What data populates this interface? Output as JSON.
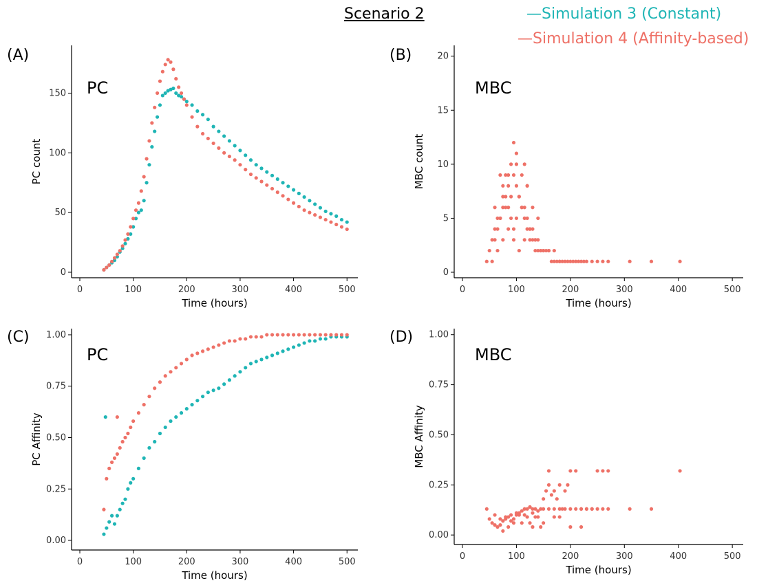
{
  "figure": {
    "title": "Scenario 2",
    "legend": [
      {
        "label": "—Simulation 3 (Constant)",
        "color": "#1fb5b5"
      },
      {
        "label": "—Simulation 4 (Affinity-based)",
        "color": "#ee7167"
      }
    ]
  },
  "colors": {
    "sim3": "#1fb5b5",
    "sim4": "#ee7167",
    "axis": "#000000"
  },
  "chart_data": [
    {
      "type": "scatter",
      "panel": "(A)",
      "panel_label": "PC",
      "xlabel": "Time (hours)",
      "ylabel": "PC count",
      "xlim": [
        0,
        510
      ],
      "ylim": [
        0,
        190
      ],
      "xticks": [
        0,
        100,
        200,
        300,
        400,
        500
      ],
      "yticks": [
        0,
        50,
        100,
        150
      ],
      "xtick_labels": [
        "0",
        "100",
        "200",
        "300",
        "400",
        "500"
      ],
      "ytick_labels": [
        "0",
        "50",
        "100",
        "150"
      ],
      "series": [
        {
          "name": "Simulation 3 (Constant)",
          "color": "#1fb5b5",
          "x": [
            45,
            50,
            55,
            60,
            65,
            70,
            75,
            80,
            85,
            90,
            95,
            100,
            105,
            110,
            115,
            120,
            125,
            130,
            135,
            140,
            145,
            150,
            155,
            160,
            165,
            170,
            175,
            180,
            185,
            190,
            195,
            200,
            210,
            220,
            230,
            240,
            250,
            260,
            270,
            280,
            290,
            300,
            310,
            320,
            330,
            340,
            350,
            360,
            370,
            380,
            390,
            400,
            410,
            420,
            430,
            440,
            450,
            460,
            470,
            480,
            490,
            500
          ],
          "y": [
            2,
            4,
            6,
            8,
            10,
            13,
            17,
            20,
            24,
            28,
            32,
            38,
            45,
            50,
            52,
            60,
            75,
            90,
            105,
            118,
            130,
            140,
            148,
            150,
            152,
            153,
            154,
            150,
            148,
            147,
            145,
            143,
            140,
            135,
            132,
            128,
            122,
            118,
            114,
            110,
            106,
            102,
            98,
            94,
            90,
            87,
            84,
            81,
            78,
            75,
            72,
            69,
            66,
            63,
            60,
            57,
            54,
            51,
            49,
            47,
            44,
            42
          ]
        },
        {
          "name": "Simulation 4 (Affinity-based)",
          "color": "#ee7167",
          "x": [
            45,
            50,
            55,
            60,
            65,
            70,
            75,
            80,
            85,
            90,
            95,
            100,
            105,
            110,
            115,
            120,
            125,
            130,
            135,
            140,
            145,
            150,
            155,
            160,
            165,
            170,
            175,
            180,
            185,
            190,
            195,
            200,
            210,
            220,
            230,
            240,
            250,
            260,
            270,
            280,
            290,
            300,
            310,
            320,
            330,
            340,
            350,
            360,
            370,
            380,
            390,
            400,
            410,
            420,
            430,
            440,
            450,
            460,
            470,
            480,
            490,
            500
          ],
          "y": [
            2,
            4,
            6,
            9,
            12,
            15,
            18,
            22,
            27,
            32,
            38,
            45,
            52,
            58,
            68,
            80,
            95,
            110,
            125,
            138,
            150,
            160,
            168,
            174,
            178,
            176,
            170,
            162,
            155,
            150,
            145,
            140,
            130,
            122,
            116,
            112,
            108,
            104,
            100,
            97,
            94,
            90,
            86,
            82,
            79,
            76,
            73,
            70,
            67,
            64,
            61,
            58,
            55,
            52,
            50,
            48,
            46,
            44,
            42,
            40,
            38,
            36
          ]
        }
      ]
    },
    {
      "type": "scatter",
      "panel": "(B)",
      "panel_label": "MBC",
      "xlabel": "Time (hours)",
      "ylabel": "MBC count",
      "xlim": [
        0,
        510
      ],
      "ylim": [
        0,
        21
      ],
      "xticks": [
        0,
        100,
        200,
        300,
        400,
        500
      ],
      "yticks": [
        0,
        5,
        10,
        15,
        20
      ],
      "xtick_labels": [
        "0",
        "100",
        "200",
        "300",
        "400",
        "500"
      ],
      "ytick_labels": [
        "0",
        "5",
        "10",
        "15",
        "20"
      ],
      "series": [
        {
          "name": "Simulation 4 (Affinity-based)",
          "color": "#ee7167",
          "x": [
            45,
            50,
            55,
            60,
            65,
            70,
            75,
            80,
            85,
            90,
            95,
            100,
            105,
            110,
            115,
            120,
            125,
            130,
            135,
            140,
            145,
            150,
            155,
            160,
            165,
            170,
            175,
            180,
            185,
            190,
            195,
            200,
            205,
            210,
            215,
            220,
            225,
            230,
            240,
            250,
            260,
            270,
            310,
            350,
            403,
            55,
            65,
            75,
            85,
            95,
            105,
            115,
            125,
            135,
            145,
            60,
            70,
            80,
            90,
            100,
            110,
            120,
            130,
            140,
            150,
            160,
            170,
            180,
            65,
            75,
            85,
            95,
            105,
            115,
            125,
            135,
            60,
            80,
            100,
            120,
            140,
            70,
            90,
            110,
            130,
            75,
            95,
            115,
            85,
            100,
            120
          ],
          "y": [
            1,
            2,
            3,
            4,
            4,
            5,
            6,
            7,
            6,
            5,
            4,
            5,
            7,
            6,
            5,
            4,
            3,
            3,
            2,
            2,
            2,
            2,
            2,
            2,
            1,
            1,
            1,
            1,
            1,
            1,
            1,
            1,
            1,
            1,
            1,
            1,
            1,
            1,
            1,
            1,
            1,
            1,
            1,
            1,
            1,
            1,
            2,
            3,
            4,
            3,
            2,
            3,
            4,
            3,
            2,
            3,
            5,
            6,
            7,
            8,
            6,
            5,
            4,
            3,
            2,
            2,
            2,
            1,
            5,
            7,
            8,
            9,
            7,
            6,
            4,
            3,
            6,
            9,
            10,
            8,
            5,
            9,
            10,
            9,
            6,
            8,
            12,
            10,
            9,
            11,
            8
          ]
        }
      ]
    },
    {
      "type": "scatter",
      "panel": "(C)",
      "panel_label": "PC",
      "xlabel": "Time (hours)",
      "ylabel": "PC Affinity",
      "xlim": [
        0,
        510
      ],
      "ylim": [
        -0.02,
        1.03
      ],
      "xticks": [
        0,
        100,
        200,
        300,
        400,
        500
      ],
      "yticks": [
        0,
        0.25,
        0.5,
        0.75,
        1.0
      ],
      "xtick_labels": [
        "0",
        "100",
        "200",
        "300",
        "400",
        "500"
      ],
      "ytick_labels": [
        "0.00",
        "0.25",
        "0.50",
        "0.75",
        "1.00"
      ],
      "series": [
        {
          "name": "Simulation 3 (Constant)",
          "color": "#1fb5b5",
          "x": [
            45,
            50,
            55,
            60,
            65,
            70,
            75,
            80,
            85,
            90,
            95,
            100,
            110,
            120,
            130,
            140,
            150,
            160,
            170,
            180,
            190,
            200,
            210,
            220,
            230,
            240,
            250,
            260,
            270,
            280,
            290,
            300,
            310,
            320,
            330,
            340,
            350,
            360,
            370,
            380,
            390,
            400,
            410,
            420,
            430,
            440,
            450,
            460,
            470,
            480,
            490,
            500,
            48
          ],
          "y": [
            0.03,
            0.06,
            0.09,
            0.12,
            0.08,
            0.12,
            0.15,
            0.18,
            0.2,
            0.25,
            0.28,
            0.3,
            0.35,
            0.4,
            0.45,
            0.48,
            0.52,
            0.55,
            0.58,
            0.6,
            0.62,
            0.64,
            0.66,
            0.68,
            0.7,
            0.72,
            0.73,
            0.74,
            0.76,
            0.78,
            0.8,
            0.82,
            0.84,
            0.86,
            0.87,
            0.88,
            0.89,
            0.9,
            0.91,
            0.92,
            0.93,
            0.94,
            0.95,
            0.96,
            0.97,
            0.97,
            0.98,
            0.98,
            0.99,
            0.99,
            0.99,
            0.99,
            0.6
          ]
        },
        {
          "name": "Simulation 4 (Affinity-based)",
          "color": "#ee7167",
          "x": [
            45,
            50,
            55,
            60,
            65,
            70,
            75,
            80,
            85,
            90,
            95,
            100,
            110,
            120,
            130,
            140,
            150,
            160,
            170,
            180,
            190,
            200,
            210,
            220,
            230,
            240,
            250,
            260,
            270,
            280,
            290,
            300,
            310,
            320,
            330,
            340,
            350,
            360,
            370,
            380,
            390,
            400,
            410,
            420,
            430,
            440,
            450,
            460,
            470,
            480,
            490,
            500,
            70
          ],
          "y": [
            0.15,
            0.3,
            0.35,
            0.38,
            0.4,
            0.42,
            0.45,
            0.48,
            0.5,
            0.52,
            0.55,
            0.58,
            0.62,
            0.66,
            0.7,
            0.74,
            0.77,
            0.8,
            0.82,
            0.84,
            0.86,
            0.88,
            0.9,
            0.91,
            0.92,
            0.93,
            0.94,
            0.95,
            0.96,
            0.97,
            0.97,
            0.98,
            0.98,
            0.99,
            0.99,
            0.99,
            1.0,
            1.0,
            1.0,
            1.0,
            1.0,
            1.0,
            1.0,
            1.0,
            1.0,
            1.0,
            1.0,
            1.0,
            1.0,
            1.0,
            1.0,
            1.0,
            0.6
          ]
        }
      ]
    },
    {
      "type": "scatter",
      "panel": "(D)",
      "panel_label": "MBC",
      "xlabel": "Time (hours)",
      "ylabel": "MBC Affinity",
      "xlim": [
        0,
        510
      ],
      "ylim": [
        -0.02,
        1.03
      ],
      "xticks": [
        0,
        100,
        200,
        300,
        400,
        500
      ],
      "yticks": [
        0,
        0.25,
        0.5,
        0.75,
        1.0
      ],
      "xtick_labels": [
        "0",
        "100",
        "200",
        "300",
        "400",
        "500"
      ],
      "ytick_labels": [
        "0.00",
        "0.25",
        "0.50",
        "0.75",
        "1.00"
      ],
      "series": [
        {
          "name": "Simulation 4 (Affinity-based)",
          "color": "#ee7167",
          "x": [
            45,
            50,
            55,
            60,
            65,
            70,
            75,
            80,
            85,
            90,
            95,
            100,
            105,
            110,
            115,
            120,
            125,
            130,
            135,
            140,
            145,
            150,
            155,
            160,
            165,
            170,
            175,
            180,
            185,
            190,
            195,
            200,
            210,
            220,
            230,
            240,
            250,
            260,
            270,
            310,
            350,
            403,
            60,
            70,
            80,
            90,
            100,
            110,
            120,
            130,
            140,
            150,
            160,
            170,
            180,
            190,
            200,
            210,
            220,
            230,
            240,
            250,
            260,
            270,
            75,
            85,
            95,
            105,
            115,
            125,
            135,
            145,
            160,
            180,
            200,
            220,
            130,
            150,
            170
          ],
          "y": [
            0.13,
            0.08,
            0.06,
            0.05,
            0.04,
            0.05,
            0.07,
            0.08,
            0.09,
            0.1,
            0.08,
            0.1,
            0.11,
            0.12,
            0.1,
            0.13,
            0.14,
            0.11,
            0.13,
            0.12,
            0.13,
            0.18,
            0.22,
            0.25,
            0.2,
            0.22,
            0.18,
            0.13,
            0.13,
            0.22,
            0.25,
            0.32,
            0.32,
            0.13,
            0.13,
            0.13,
            0.32,
            0.32,
            0.32,
            0.13,
            0.13,
            0.32,
            0.1,
            0.08,
            0.09,
            0.07,
            0.11,
            0.06,
            0.09,
            0.13,
            0.09,
            0.13,
            0.32,
            0.13,
            0.09,
            0.13,
            0.04,
            0.13,
            0.04,
            0.13,
            0.13,
            0.13,
            0.13,
            0.13,
            0.02,
            0.04,
            0.06,
            0.1,
            0.13,
            0.06,
            0.09,
            0.04,
            0.13,
            0.25,
            0.13,
            0.13,
            0.04,
            0.06,
            0.09
          ]
        }
      ]
    }
  ]
}
